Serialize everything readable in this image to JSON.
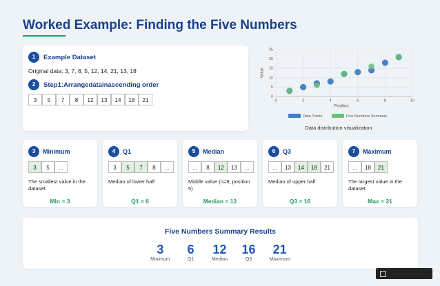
{
  "title": "Worked Example: Finding the Five Numbers",
  "dataset": {
    "num1": "1",
    "heading1": "Example Dataset",
    "original": "Original data: 3, 7, 8, 5, 12, 14, 21, 13, 18",
    "num2": "2",
    "heading2": "Step1:Arrangedatainascending order",
    "sorted": [
      "3",
      "5",
      "7",
      "8",
      "12",
      "13",
      "14",
      "18",
      "21"
    ]
  },
  "chart_data": {
    "type": "scatter",
    "caption": "Data distribution visualization",
    "x_label": "Position",
    "y_label": "Value",
    "xlim": [
      0,
      10
    ],
    "xticks": [
      0,
      2,
      4,
      6,
      8,
      10
    ],
    "ylim": [
      0,
      25
    ],
    "yticks": [
      0,
      5,
      10,
      15,
      20,
      25
    ],
    "grid": true,
    "series": [
      {
        "name": "Data Points",
        "color": "#3f7cc8",
        "x": [
          1,
          2,
          3,
          4,
          5,
          6,
          7,
          8,
          9
        ],
        "values": [
          3,
          5,
          7,
          8,
          12,
          13,
          14,
          18,
          21
        ]
      },
      {
        "name": "Five Numbers Summary",
        "color": "#6cc07a",
        "x": [
          1,
          3,
          5,
          7,
          9
        ],
        "values": [
          3,
          6,
          12,
          16,
          21
        ]
      }
    ]
  },
  "steps": [
    {
      "num": "3",
      "title": "Minimum",
      "boxes": [
        {
          "text": "3",
          "highlight": true
        },
        {
          "text": "5",
          "highlight": false
        },
        {
          "text": "...",
          "highlight": false
        }
      ],
      "desc": "The smallest value in the dataset",
      "result": "Min = 3"
    },
    {
      "num": "4",
      "title": "Q1",
      "boxes": [
        {
          "text": "3",
          "highlight": false
        },
        {
          "text": "5",
          "highlight": true
        },
        {
          "text": "7",
          "highlight": true
        },
        {
          "text": "8",
          "highlight": false
        },
        {
          "text": "...",
          "highlight": false
        }
      ],
      "desc": "Median of lower half",
      "result": "Q1 = 6"
    },
    {
      "num": "5",
      "title": "Median",
      "boxes": [
        {
          "text": "...",
          "highlight": false
        },
        {
          "text": "8",
          "highlight": false
        },
        {
          "text": "12",
          "highlight": true
        },
        {
          "text": "13",
          "highlight": false
        },
        {
          "text": "...",
          "highlight": false
        }
      ],
      "desc": "Middle value (n=9, position 5)",
      "result": "Median = 12"
    },
    {
      "num": "6",
      "title": "Q3",
      "boxes": [
        {
          "text": "...",
          "highlight": false
        },
        {
          "text": "13",
          "highlight": false
        },
        {
          "text": "14",
          "highlight": true
        },
        {
          "text": "18",
          "highlight": true
        },
        {
          "text": "21",
          "highlight": false
        }
      ],
      "desc": "Median of upper half",
      "result": "Q3 = 16"
    },
    {
      "num": "7",
      "title": "Maximum",
      "boxes": [
        {
          "text": "...",
          "highlight": false
        },
        {
          "text": "18",
          "highlight": false
        },
        {
          "text": "21",
          "highlight": true
        }
      ],
      "desc": "The largest value in the dataset",
      "result": "Max = 21"
    }
  ],
  "summary": {
    "title": "Five Numbers Summary Results",
    "items": [
      {
        "value": 3,
        "label": "Minimum"
      },
      {
        "value": 6,
        "label": "Q1"
      },
      {
        "value": 12,
        "label": "Median"
      },
      {
        "value": 16,
        "label": "Q3"
      },
      {
        "value": 21,
        "label": "Maximum"
      }
    ]
  }
}
